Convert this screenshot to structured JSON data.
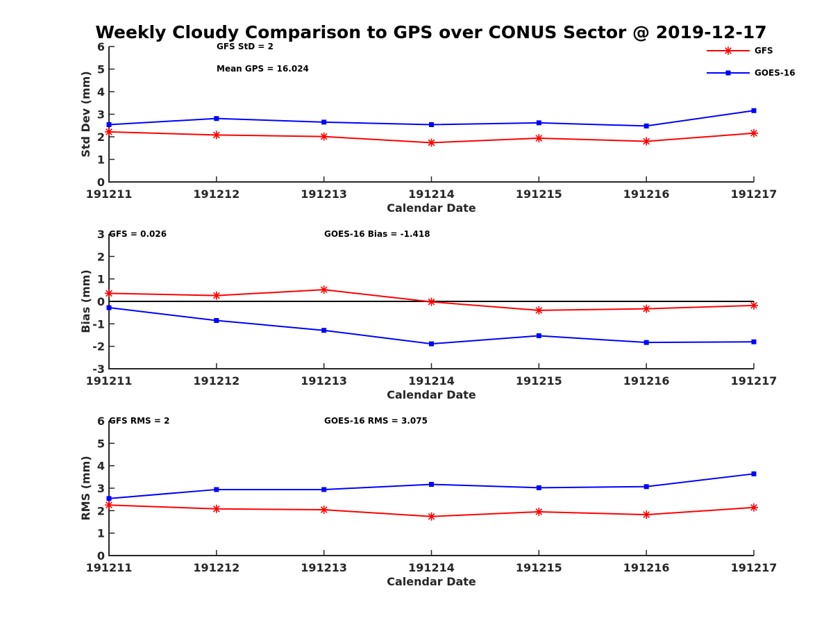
{
  "title": "Weekly Cloudy Comparison to GPS over CONUS Sector @ 2019-12-17",
  "colors": {
    "GFS": "#ff0000",
    "GOES-16": "#0000ff",
    "zero_line": "#000000"
  },
  "legend": {
    "placement": "top-right",
    "entries": [
      "GFS",
      "GOES-16"
    ]
  },
  "chart_data": [
    {
      "type": "line",
      "xlabel": "Calendar Date",
      "ylabel": "Std Dev (mm)",
      "categories": [
        "191211",
        "191212",
        "191213",
        "191214",
        "191215",
        "191216",
        "191217"
      ],
      "ylim": [
        0,
        6
      ],
      "yticks": [
        0,
        1,
        2,
        3,
        4,
        5,
        6
      ],
      "annotations": [
        "GFS StD = 2",
        "Mean GPS = 16.024"
      ],
      "series": [
        {
          "name": "GFS",
          "marker": "asterisk",
          "values": [
            2.22,
            2.08,
            2.01,
            1.74,
            1.94,
            1.8,
            2.16
          ]
        },
        {
          "name": "GOES-16",
          "marker": "square",
          "values": [
            2.54,
            2.81,
            2.65,
            2.54,
            2.62,
            2.48,
            3.16
          ]
        }
      ]
    },
    {
      "type": "line",
      "xlabel": "Calendar Date",
      "ylabel": "Bias (mm)",
      "categories": [
        "191211",
        "191212",
        "191213",
        "191214",
        "191215",
        "191216",
        "191217"
      ],
      "ylim": [
        -3,
        3
      ],
      "yticks": [
        -3,
        -2,
        -1,
        0,
        1,
        2,
        3
      ],
      "zero_line": true,
      "annotations": [
        "GFS = 0.026",
        "GOES-16 Bias  = -1.418"
      ],
      "series": [
        {
          "name": "GFS",
          "marker": "asterisk",
          "values": [
            0.36,
            0.26,
            0.52,
            -0.02,
            -0.4,
            -0.33,
            -0.18
          ]
        },
        {
          "name": "GOES-16",
          "marker": "square",
          "values": [
            -0.28,
            -0.85,
            -1.29,
            -1.89,
            -1.53,
            -1.83,
            -1.8
          ]
        }
      ]
    },
    {
      "type": "line",
      "xlabel": "Calendar Date",
      "ylabel": "RMS (mm)",
      "categories": [
        "191211",
        "191212",
        "191213",
        "191214",
        "191215",
        "191216",
        "191217"
      ],
      "ylim": [
        0,
        6
      ],
      "yticks": [
        0,
        1,
        2,
        3,
        4,
        5,
        6
      ],
      "annotations": [
        "GFS RMS = 2",
        "GOES-16 RMS = 3.075"
      ],
      "series": [
        {
          "name": "GFS",
          "marker": "asterisk",
          "values": [
            2.25,
            2.08,
            2.04,
            1.74,
            1.95,
            1.82,
            2.14
          ]
        },
        {
          "name": "GOES-16",
          "marker": "square",
          "values": [
            2.54,
            2.94,
            2.94,
            3.17,
            3.02,
            3.07,
            3.64
          ]
        }
      ]
    }
  ]
}
